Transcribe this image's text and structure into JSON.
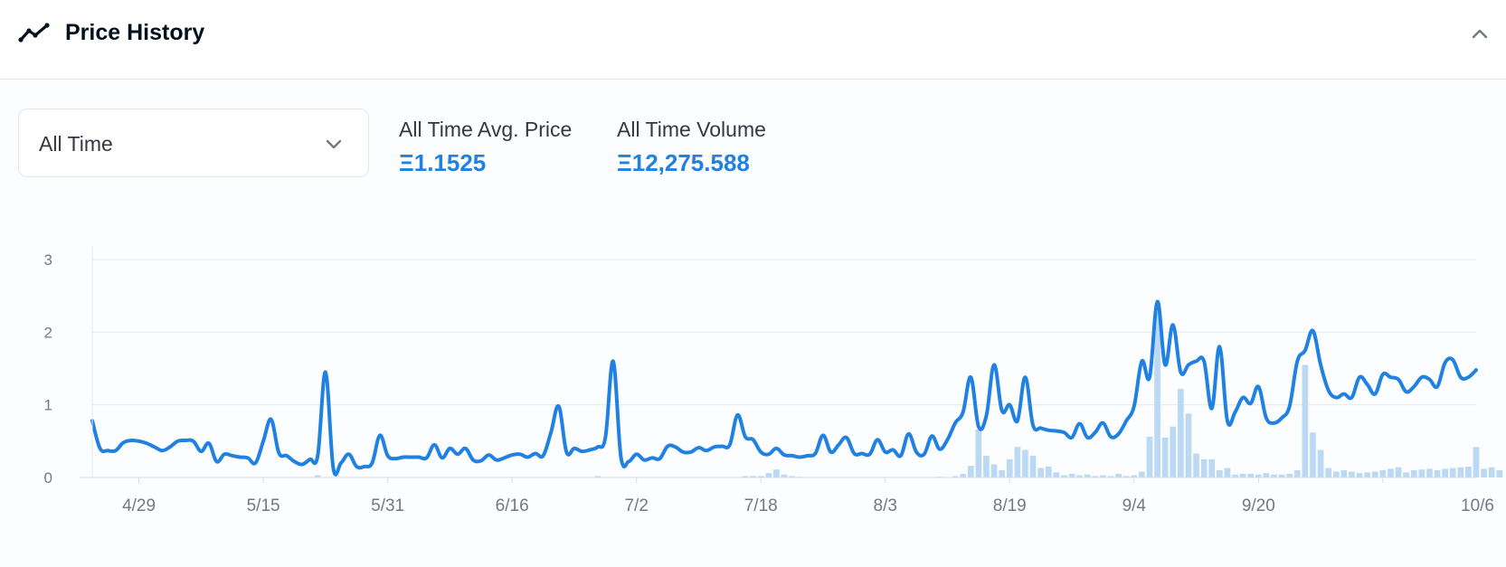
{
  "header": {
    "title": "Price History",
    "icon": "trend-line-icon",
    "collapse_icon": "chevron-up-icon"
  },
  "filter": {
    "selected": "All Time",
    "icon": "chevron-down-icon"
  },
  "stats": [
    {
      "label": "All Time Avg. Price",
      "value": "Ξ1.1525"
    },
    {
      "label": "All Time Volume",
      "value": "Ξ12,275.588"
    }
  ],
  "colors": {
    "line": "#2081e2",
    "volume": "#bcd9f4",
    "accent": "#2081e2"
  },
  "chart_data": {
    "type": "line",
    "title": "",
    "xlabel": "",
    "ylabel": "",
    "x_tick_labels": [
      "4/29",
      "5/15",
      "5/31",
      "6/16",
      "7/2",
      "7/18",
      "8/3",
      "8/19",
      "9/4",
      "9/20",
      "10/6"
    ],
    "y_tick_labels": [
      "0",
      "1",
      "2",
      "3"
    ],
    "ylim": [
      0,
      3
    ],
    "x_start": "4/23",
    "grid": true,
    "series": [
      {
        "type": "line",
        "values": [
          0.78,
          0.4,
          0.37,
          0.37,
          0.48,
          0.51,
          0.5,
          0.47,
          0.42,
          0.37,
          0.42,
          0.5,
          0.51,
          0.5,
          0.36,
          0.47,
          0.22,
          0.32,
          0.3,
          0.28,
          0.27,
          0.2,
          0.5,
          0.8,
          0.34,
          0.3,
          0.22,
          0.18,
          0.25,
          0.3,
          1.45,
          0.13,
          0.2,
          0.32,
          0.15,
          0.15,
          0.2,
          0.58,
          0.3,
          0.26,
          0.28,
          0.28,
          0.28,
          0.27,
          0.45,
          0.27,
          0.4,
          0.32,
          0.4,
          0.24,
          0.23,
          0.31,
          0.24,
          0.27,
          0.31,
          0.32,
          0.28,
          0.33,
          0.3,
          0.62,
          0.98,
          0.35,
          0.4,
          0.36,
          0.38,
          0.42,
          0.55,
          1.6,
          0.28,
          0.22,
          0.32,
          0.24,
          0.27,
          0.26,
          0.43,
          0.42,
          0.35,
          0.35,
          0.41,
          0.37,
          0.42,
          0.43,
          0.45,
          0.86,
          0.56,
          0.52,
          0.35,
          0.32,
          0.4,
          0.31,
          0.3,
          0.28,
          0.3,
          0.33,
          0.58,
          0.35,
          0.45,
          0.55,
          0.33,
          0.33,
          0.32,
          0.52,
          0.35,
          0.38,
          0.3,
          0.6,
          0.35,
          0.32,
          0.57,
          0.39,
          0.52,
          0.75,
          0.9,
          1.38,
          0.7,
          0.85,
          1.55,
          0.92,
          1.0,
          0.78,
          1.38,
          0.72,
          0.68,
          0.65,
          0.64,
          0.62,
          0.55,
          0.74,
          0.55,
          0.62,
          0.75,
          0.56,
          0.6,
          0.78,
          0.98,
          1.6,
          1.38,
          2.42,
          1.55,
          2.1,
          1.45,
          1.55,
          1.6,
          1.6,
          0.95,
          1.8,
          0.78,
          0.9,
          1.1,
          1.02,
          1.25,
          0.82,
          0.75,
          0.82,
          0.98,
          1.6,
          1.75,
          2.02,
          1.55,
          1.2,
          1.1,
          1.15,
          1.1,
          1.38,
          1.28,
          1.15,
          1.42,
          1.38,
          1.35,
          1.18,
          1.25,
          1.38,
          1.35,
          1.25,
          1.58,
          1.62,
          1.38,
          1.38,
          1.48
        ]
      },
      {
        "type": "bar",
        "values": [
          0,
          0,
          0,
          0,
          0,
          0,
          0,
          0,
          0,
          0,
          0,
          0,
          0,
          0,
          0,
          0,
          0,
          0,
          0,
          0,
          0,
          0,
          0,
          0,
          0,
          0,
          0,
          0,
          0,
          0.03,
          0,
          0,
          0,
          0,
          0,
          0,
          0,
          0,
          0,
          0,
          0,
          0,
          0,
          0,
          0,
          0,
          0,
          0,
          0,
          0,
          0,
          0,
          0,
          0,
          0,
          0,
          0,
          0,
          0,
          0,
          0,
          0,
          0,
          0,
          0,
          0.02,
          0,
          0,
          0,
          0,
          0,
          0,
          0,
          0,
          0,
          0,
          0,
          0,
          0,
          0,
          0,
          0,
          0,
          0,
          0.02,
          0.02,
          0.02,
          0.06,
          0.11,
          0.04,
          0.02,
          0.01,
          0,
          0,
          0,
          0,
          0,
          0,
          0,
          0,
          0,
          0,
          0,
          0,
          0,
          0,
          0,
          0,
          0,
          0.01,
          0,
          0.02,
          0.05,
          0.16,
          0.66,
          0.3,
          0.18,
          0.1,
          0.25,
          0.42,
          0.38,
          0.3,
          0.13,
          0.15,
          0.07,
          0.03,
          0.05,
          0.03,
          0.04,
          0.02,
          0.03,
          0.02,
          0.05,
          0.02,
          0.03,
          0.08,
          0.56,
          2.28,
          0.55,
          0.7,
          1.22,
          0.88,
          0.33,
          0.25,
          0.25,
          0.1,
          0.13,
          0.04,
          0.05,
          0.05,
          0.04,
          0.06,
          0.04,
          0.04,
          0.05,
          0.1,
          1.55,
          0.62,
          0.38,
          0.13,
          0.08,
          0.1,
          0.08,
          0.06,
          0.07,
          0.08,
          0.1,
          0.12,
          0.14,
          0.07,
          0.1,
          0.11,
          0.12,
          0.1,
          0.12,
          0.13,
          0.14,
          0.15,
          0.42,
          0.12,
          0.14,
          0.1
        ]
      }
    ]
  }
}
